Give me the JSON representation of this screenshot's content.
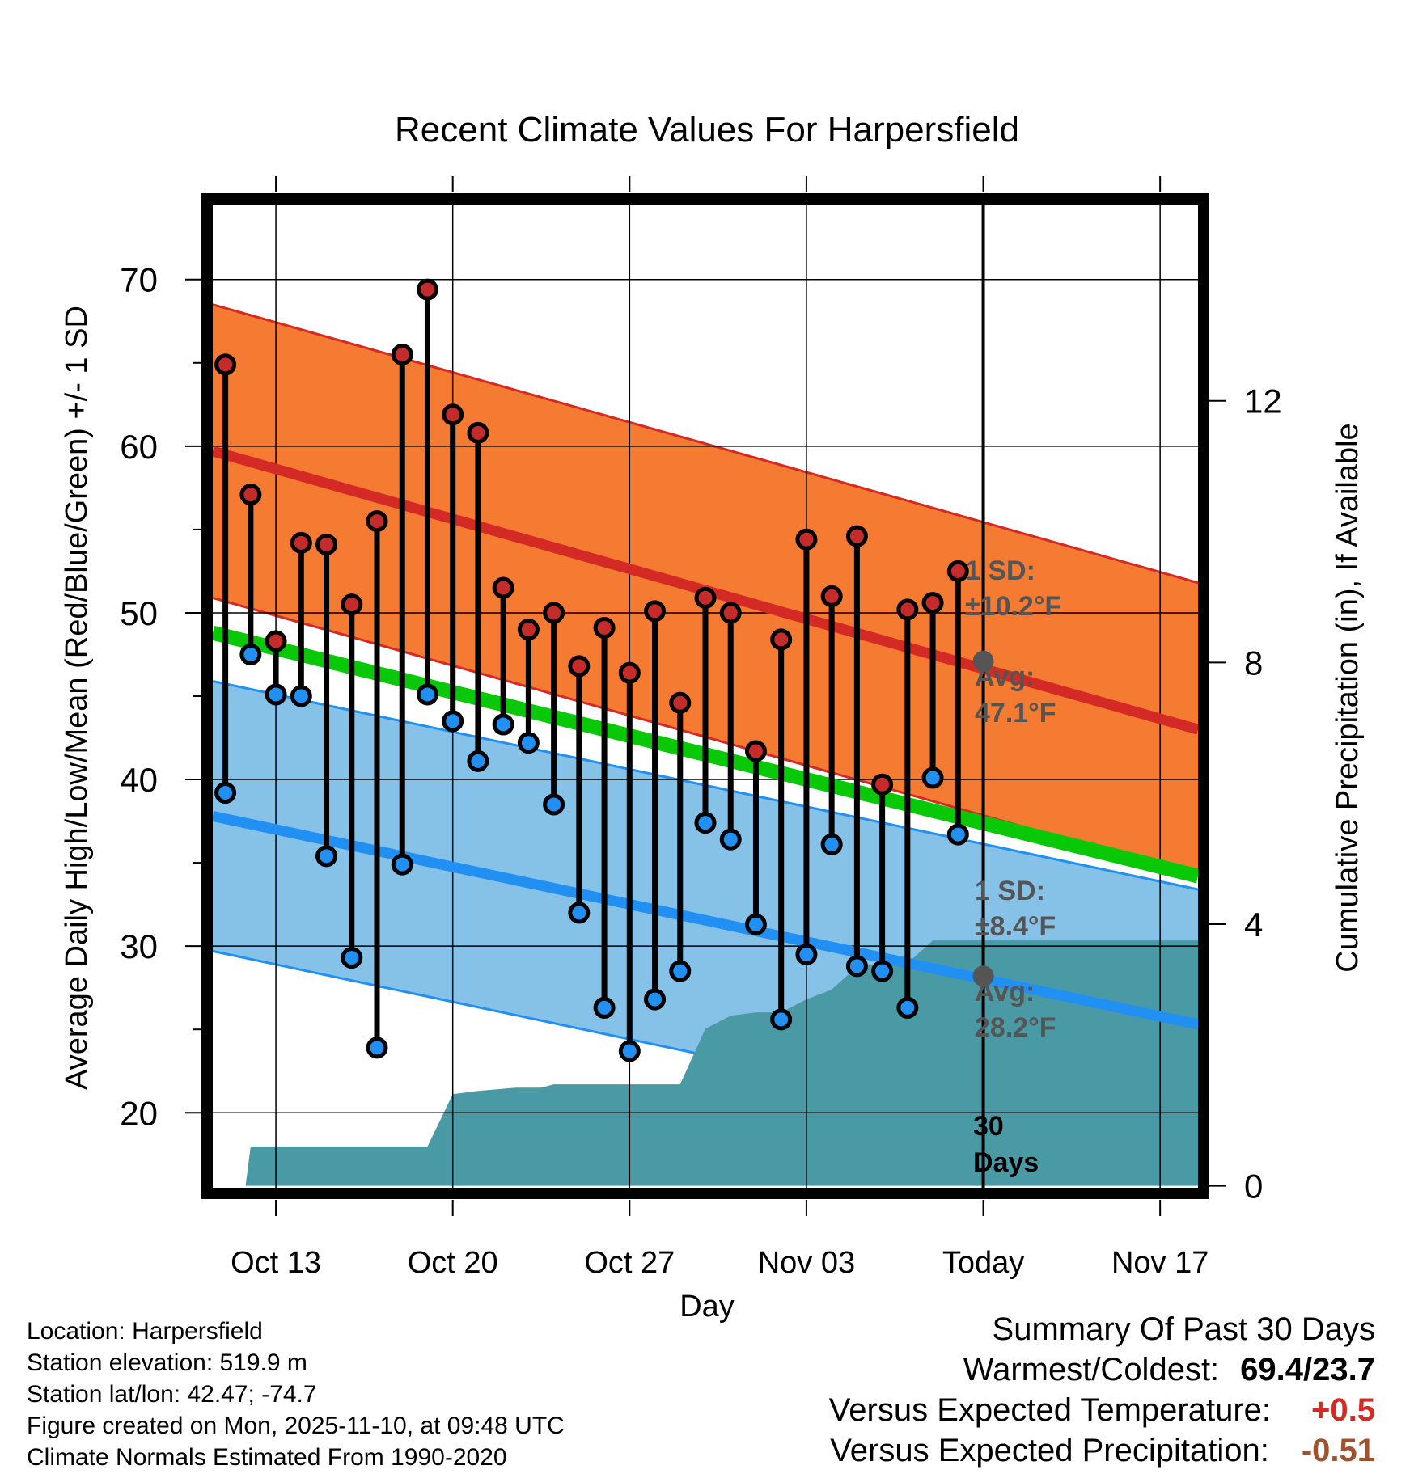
{
  "chart_data": {
    "type": "line",
    "title": "Recent Climate Values For Harpersfield",
    "xlabel": "Day",
    "ylabel": "Average Daily High/Low/Mean (Red/Blue/Green) +/- 1 SD",
    "y2label": "Cumulative Precipitation (in), If Available",
    "xlim": [
      -2.5,
      36.5
    ],
    "ylim": [
      15.5,
      74.5
    ],
    "y2lim": [
      -0.03,
      15.0
    ],
    "yticks": [
      20,
      30,
      40,
      50,
      60,
      70
    ],
    "y2ticks": [
      0,
      4,
      8,
      12
    ],
    "xticks": [
      {
        "day": 0,
        "label": "Oct 13"
      },
      {
        "day": 7,
        "label": "Oct 20"
      },
      {
        "day": 14,
        "label": "Oct 27"
      },
      {
        "day": 21,
        "label": "Nov 03"
      },
      {
        "day": 28,
        "label": "Today"
      },
      {
        "day": 35,
        "label": "Nov 17"
      }
    ],
    "grid": true,
    "today_day": 28,
    "normals": {
      "x_start": -2.5,
      "x_end": 36.5,
      "high_avg": [
        59.7,
        43.0
      ],
      "high_sd": 8.8,
      "low_avg": [
        37.8,
        25.3
      ],
      "low_sd": 8.1,
      "mean_avg": [
        48.8,
        34.2
      ]
    },
    "days": [
      -2,
      -1,
      0,
      1,
      2,
      3,
      4,
      5,
      6,
      7,
      8,
      9,
      10,
      11,
      12,
      13,
      14,
      15,
      16,
      17,
      18,
      19,
      20,
      21,
      22,
      23,
      24,
      25,
      26,
      27
    ],
    "highs": [
      64.9,
      57.1,
      48.3,
      54.2,
      54.1,
      50.5,
      55.5,
      65.5,
      69.4,
      61.9,
      60.8,
      51.5,
      49.0,
      50.0,
      46.8,
      49.1,
      46.4,
      50.1,
      44.6,
      50.9,
      50.0,
      41.7,
      48.4,
      54.4,
      51.0,
      54.6,
      39.7,
      50.2,
      50.6,
      52.5
    ],
    "lows": [
      39.2,
      47.5,
      45.1,
      45.0,
      35.4,
      29.3,
      23.9,
      34.9,
      45.1,
      43.5,
      41.1,
      43.3,
      42.2,
      38.5,
      32.0,
      26.3,
      23.7,
      26.8,
      28.5,
      37.4,
      36.4,
      31.3,
      25.6,
      29.5,
      36.1,
      28.8,
      28.5,
      26.3,
      40.1,
      36.7
    ],
    "precip_cumulative": {
      "x": [
        -1.2,
        -1.0,
        2.0,
        4.0,
        6.0,
        7.0,
        8.0,
        9.5,
        10.5,
        11.0,
        13.0,
        14.0,
        16.0,
        17.0,
        18.0,
        19.0,
        20.0,
        21.0,
        22.0,
        23.0,
        24.0,
        25.0,
        26.0,
        27.0,
        28.0,
        36.5
      ],
      "values": [
        0.0,
        0.6,
        0.6,
        0.6,
        0.6,
        1.4,
        1.45,
        1.5,
        1.5,
        1.55,
        1.55,
        1.55,
        1.55,
        2.4,
        2.6,
        2.65,
        2.65,
        2.85,
        3.0,
        3.35,
        3.4,
        3.4,
        3.75,
        3.75,
        3.75,
        3.75
      ]
    },
    "annotations": {
      "high_sd_label": [
        "1 SD:",
        "±10.2°F"
      ],
      "high_avg_label": [
        "Avg:",
        "47.1°F"
      ],
      "high_avg_value": 47.1,
      "low_sd_label": [
        "1 SD:",
        "±8.4°F"
      ],
      "low_avg_label": [
        "Avg:",
        "28.2°F"
      ],
      "low_avg_value": 28.2,
      "days_label": [
        "30",
        "Days"
      ]
    },
    "colors": {
      "high_band": "#f47b31",
      "high_line": "#d42a26",
      "low_band": "#86c1e8",
      "low_line": "#2190f2",
      "mean_line": "#08c808",
      "precip": "#4a9aa5",
      "high_marker": "#c42b2b",
      "low_marker": "#2190f2",
      "label_gray": "#555555"
    }
  },
  "footer": {
    "location": "Location: Harpersfield",
    "elevation": "Station elevation: 519.9 m",
    "latlon": "Station lat/lon: 42.47; -74.7",
    "created": "Figure created on Mon, 2025-11-10, at 09:48 UTC",
    "normals": "Climate Normals Estimated From 1990-2020"
  },
  "summary": {
    "title": "Summary Of Past 30 Days",
    "warmest_label": "Warmest/Coldest:",
    "warmest_value": "69.4/23.7",
    "temp_label": "Versus Expected Temperature:",
    "temp_value": "+0.5",
    "temp_color": "#d42a26",
    "precip_label": "Versus Expected Precipitation:",
    "precip_value": "-0.51",
    "precip_color": "#a0522d"
  }
}
